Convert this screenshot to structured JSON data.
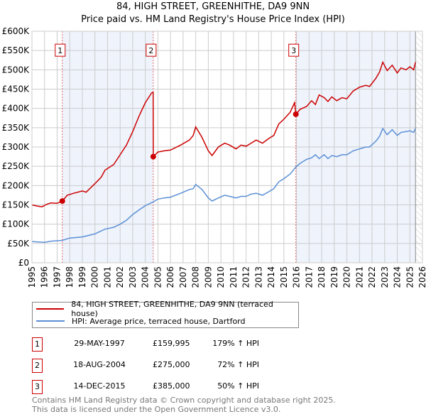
{
  "title_line1": "84, HIGH STREET, GREENHITHE, DA9 9NN",
  "title_line2": "Price paid vs. HM Land Registry's House Price Index (HPI)",
  "colors": {
    "property": "#cc0000",
    "hpi": "#5b8fd6",
    "shade": "#eef3fc",
    "grid": "#cccccc"
  },
  "chart_data": {
    "type": "line",
    "title": "84, HIGH STREET, GREENHITHE, DA9 9NN — Price paid vs. HM Land Registry's House Price Index (HPI)",
    "xlim": [
      1995,
      2026
    ],
    "ylim": [
      0,
      600000
    ],
    "yticks": [
      0,
      50000,
      100000,
      150000,
      200000,
      250000,
      300000,
      350000,
      400000,
      450000,
      500000,
      550000,
      600000
    ],
    "ytick_labels": [
      "£0",
      "£50K",
      "£100K",
      "£150K",
      "£200K",
      "£250K",
      "£300K",
      "£350K",
      "£400K",
      "£450K",
      "£500K",
      "£550K",
      "£600K"
    ],
    "xticks": [
      1995,
      1996,
      1997,
      1998,
      1999,
      2000,
      2001,
      2002,
      2003,
      2004,
      2005,
      2006,
      2007,
      2008,
      2009,
      2010,
      2011,
      2012,
      2013,
      2014,
      2015,
      2016,
      2017,
      2018,
      2019,
      2020,
      2021,
      2022,
      2023,
      2024,
      2025,
      2026
    ],
    "grid": true,
    "shaded_ranges": [
      [
        1997.41,
        2004.63
      ],
      [
        2015.95,
        2025.45
      ]
    ],
    "hatched_from": 2025.45,
    "series": [
      {
        "name": "84, HIGH STREET, GREENHITHE, DA9 9NN (terraced house)",
        "x": [
          1995,
          1995.4,
          1995.8,
          1996.2,
          1996.5,
          1997,
          1997.41,
          1997.8,
          1998.3,
          1999,
          1999.3,
          2000,
          2000.5,
          2000.8,
          2001.5,
          2002,
          2002.5,
          2003,
          2003.5,
          2004,
          2004.5,
          2004.62,
          2004.63,
          2005,
          2005.5,
          2006,
          2006.8,
          2007.5,
          2007.8,
          2008,
          2008.5,
          2009,
          2009.3,
          2009.8,
          2010.3,
          2010.7,
          2011.2,
          2011.6,
          2012,
          2012.4,
          2012.8,
          2013.3,
          2013.8,
          2014.2,
          2014.6,
          2015,
          2015.5,
          2015.85,
          2015.95,
          2016.3,
          2016.8,
          2017.2,
          2017.5,
          2017.8,
          2018.2,
          2018.5,
          2018.8,
          2019.2,
          2019.6,
          2020,
          2020.5,
          2021,
          2021.5,
          2021.8,
          2022.3,
          2022.6,
          2022.85,
          2023.2,
          2023.6,
          2024,
          2024.3,
          2024.7,
          2025,
          2025.3,
          2025.45
        ],
        "y": [
          150000,
          147000,
          145000,
          152000,
          155000,
          154000,
          159995,
          175000,
          180000,
          186000,
          183000,
          205000,
          222000,
          240000,
          255000,
          280000,
          305000,
          340000,
          380000,
          415000,
          440000,
          442000,
          275000,
          287000,
          290000,
          292000,
          305000,
          318000,
          330000,
          352000,
          325000,
          290000,
          278000,
          300000,
          310000,
          305000,
          295000,
          305000,
          302000,
          310000,
          318000,
          310000,
          322000,
          330000,
          360000,
          372000,
          390000,
          415000,
          385000,
          398000,
          405000,
          420000,
          410000,
          435000,
          428000,
          418000,
          430000,
          420000,
          428000,
          425000,
          445000,
          455000,
          460000,
          457000,
          478000,
          495000,
          520000,
          498000,
          512000,
          492000,
          505000,
          500000,
          508000,
          500000,
          520000
        ]
      },
      {
        "name": "HPI: Average price, terraced house, Dartford",
        "x": [
          1995,
          1995.5,
          1996,
          1996.5,
          1997,
          1997.41,
          1998,
          1999,
          2000,
          2000.8,
          2001.5,
          2002,
          2002.5,
          2003,
          2003.5,
          2004,
          2004.63,
          2005,
          2005.5,
          2006,
          2006.8,
          2007.5,
          2007.8,
          2008,
          2008.5,
          2009,
          2009.3,
          2009.8,
          2010.3,
          2010.7,
          2011.2,
          2011.6,
          2012,
          2012.4,
          2012.8,
          2013.3,
          2013.8,
          2014.2,
          2014.6,
          2015,
          2015.5,
          2015.95,
          2016.3,
          2016.8,
          2017.2,
          2017.5,
          2017.8,
          2018.2,
          2018.5,
          2018.8,
          2019.2,
          2019.6,
          2020,
          2020.5,
          2021,
          2021.5,
          2021.8,
          2022.3,
          2022.6,
          2022.85,
          2023.2,
          2023.6,
          2024,
          2024.3,
          2024.7,
          2025,
          2025.3,
          2025.45
        ],
        "y": [
          55000,
          54000,
          53000,
          56000,
          57000,
          58000,
          64000,
          67000,
          75000,
          87000,
          92000,
          100000,
          110000,
          125000,
          137000,
          148000,
          158000,
          165000,
          168000,
          170000,
          180000,
          190000,
          192000,
          203000,
          190000,
          168000,
          160000,
          168000,
          175000,
          172000,
          168000,
          172000,
          172000,
          178000,
          180000,
          175000,
          184000,
          192000,
          210000,
          218000,
          230000,
          248000,
          258000,
          268000,
          272000,
          280000,
          270000,
          280000,
          270000,
          278000,
          275000,
          280000,
          280000,
          290000,
          295000,
          300000,
          300000,
          315000,
          328000,
          348000,
          332000,
          345000,
          330000,
          338000,
          340000,
          342000,
          338000,
          348000
        ]
      }
    ],
    "sales": [
      {
        "label": "1",
        "x": 1997.41,
        "y": 159995
      },
      {
        "label": "2",
        "x": 2004.63,
        "y": 275000
      },
      {
        "label": "3",
        "x": 2015.95,
        "y": 385000
      }
    ]
  },
  "legend": {
    "property": "84, HIGH STREET, GREENHITHE, DA9 9NN (terraced house)",
    "hpi": "HPI: Average price, terraced house, Dartford"
  },
  "transactions": [
    {
      "num": "1",
      "date": "29-MAY-1997",
      "price": "£159,995",
      "hpi": "179% ↑ HPI"
    },
    {
      "num": "2",
      "date": "18-AUG-2004",
      "price": "£275,000",
      "hpi": "72% ↑ HPI"
    },
    {
      "num": "3",
      "date": "14-DEC-2015",
      "price": "£385,000",
      "hpi": "50% ↑ HPI"
    }
  ],
  "footer": {
    "line1": "Contains HM Land Registry data © Crown copyright and database right 2025.",
    "line2": "This data is licensed under the Open Government Licence v3.0."
  }
}
